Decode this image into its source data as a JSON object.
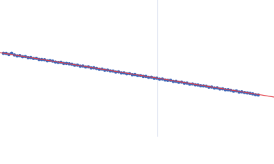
{
  "chart_data": {
    "type": "scatter",
    "xlim": [
      0,
      400
    ],
    "ylim": [
      0,
      200
    ],
    "vline": {
      "x": 230,
      "color": "#cdd5ea"
    },
    "series": [
      {
        "color": "#3d67b8",
        "x": [
          5,
          9,
          13,
          17,
          21,
          25,
          29,
          33,
          37,
          41,
          45,
          49,
          53,
          57,
          61,
          65,
          69,
          73,
          77,
          81,
          85,
          89,
          93,
          97,
          101,
          105,
          109,
          113,
          117,
          121,
          125,
          129,
          133,
          137,
          141,
          145,
          149,
          153,
          157,
          161,
          165,
          169,
          173,
          177,
          181,
          185,
          189,
          193,
          197,
          201,
          205,
          209,
          213,
          217,
          221,
          225,
          229,
          233,
          237,
          241,
          245,
          249,
          253,
          257,
          261,
          265,
          269,
          273,
          277,
          281,
          285,
          289,
          293,
          297,
          301,
          305,
          309,
          313,
          317,
          321,
          325,
          329,
          333,
          337,
          341,
          345,
          349,
          353,
          357,
          361,
          365,
          369,
          373,
          377
        ],
        "values": [
          122,
          121.8,
          120.2,
          122,
          119.6,
          118.2,
          118.6,
          117,
          117.2,
          115.6,
          115.8,
          114.4,
          114.6,
          113,
          112.8,
          112.6,
          111,
          111.4,
          110.6,
          109.2,
          108.6,
          108.8,
          107.2,
          107.2,
          106.6,
          106,
          104.6,
          104.7,
          103.2,
          103.4,
          102,
          102.2,
          100.6,
          100.8,
          99.8,
          98.6,
          98.8,
          97.3,
          97.4,
          96.2,
          96,
          94.6,
          94.8,
          93.3,
          93.4,
          92,
          92.2,
          90.6,
          90.9,
          89.5,
          89.4,
          88.2,
          88.2,
          86.8,
          87,
          85.5,
          85.6,
          84.2,
          84.4,
          82.9,
          82.4,
          82.5,
          80.8,
          81,
          79.6,
          79.8,
          78.3,
          78.4,
          76.8,
          77.1,
          75.8,
          75.6,
          74.6,
          74.3,
          73.8,
          72.4,
          72.6,
          71.2,
          71.4,
          69.8,
          70,
          68.6,
          68.6,
          67.9,
          66.6,
          67,
          65.3,
          65.6,
          64.6,
          64,
          63.4,
          62.6,
          61.4,
          61
        ]
      },
      {
        "type": "line",
        "color": "#e23a44",
        "x": [
          0,
          400
        ],
        "values": [
          123,
          58
        ]
      }
    ]
  }
}
